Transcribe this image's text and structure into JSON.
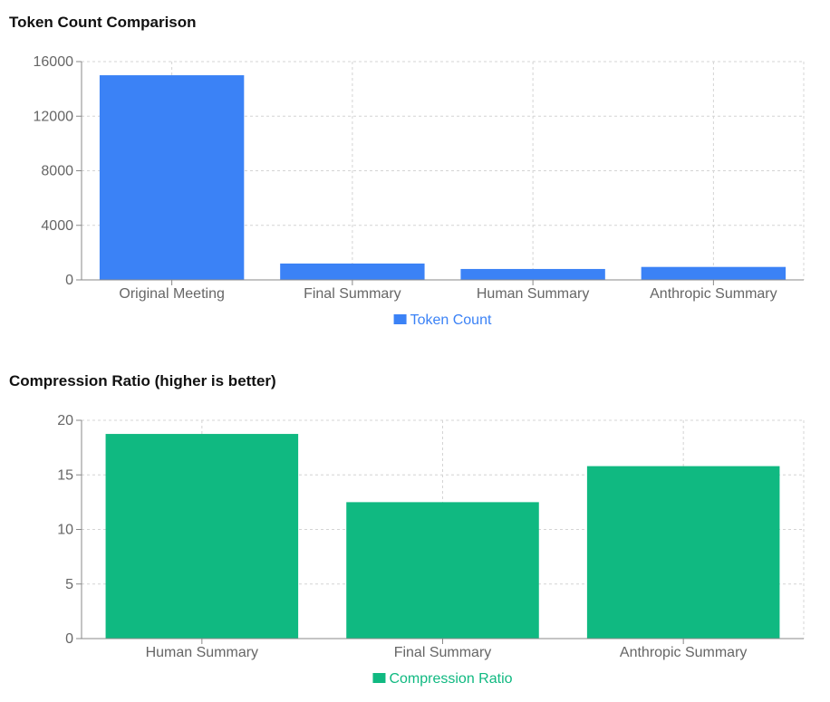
{
  "chart_data": [
    {
      "type": "bar",
      "title": "Token Count Comparison",
      "categories": [
        "Original Meeting",
        "Final Summary",
        "Human Summary",
        "Anthropic Summary"
      ],
      "series": [
        {
          "name": "Token Count",
          "values": [
            15000,
            1200,
            800,
            950
          ],
          "color": "#3b82f6"
        }
      ],
      "ylim": [
        0,
        16000
      ],
      "yticks": [
        0,
        4000,
        8000,
        12000,
        16000
      ],
      "grid": true,
      "legend_position": "bottom"
    },
    {
      "type": "bar",
      "title": "Compression Ratio (higher is better)",
      "categories": [
        "Human Summary",
        "Final Summary",
        "Anthropic Summary"
      ],
      "series": [
        {
          "name": "Compression Ratio",
          "values": [
            18.75,
            12.5,
            15.8
          ],
          "color": "#10b981"
        }
      ],
      "ylim": [
        0,
        20
      ],
      "yticks": [
        0,
        5,
        10,
        15,
        20
      ],
      "grid": true,
      "legend_position": "bottom"
    }
  ]
}
